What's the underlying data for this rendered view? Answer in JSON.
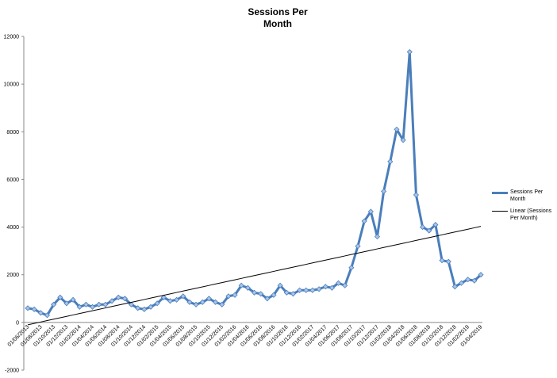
{
  "chart_data": {
    "type": "line",
    "title": "Sessions Per Month",
    "categories": [
      "01/06/2013",
      null,
      "01/08/2013",
      null,
      "01/10/2013",
      null,
      "01/12/2013",
      null,
      "01/02/2014",
      null,
      "01/04/2014",
      null,
      "01/06/2014",
      null,
      "01/08/2014",
      null,
      "01/10/2014",
      null,
      "01/12/2014",
      null,
      "01/02/2015",
      null,
      "01/04/2015",
      null,
      "01/06/2015",
      null,
      "01/08/2015",
      null,
      "01/10/2015",
      null,
      "01/12/2015",
      null,
      "01/02/2016",
      null,
      "01/04/2016",
      null,
      "01/06/2016",
      null,
      "01/08/2016",
      null,
      "01/10/2016",
      null,
      "01/12/2016",
      null,
      "01/02/2017",
      null,
      "01/04/2017",
      null,
      "01/06/2017",
      null,
      "01/08/2017",
      null,
      "01/10/2017",
      null,
      "01/12/2017",
      null,
      "01/02/2018",
      null,
      "01/04/2018",
      null,
      "01/06/2018",
      null,
      "01/08/2018",
      null,
      "01/10/2018",
      null,
      "01/12/2018",
      null,
      "01/02/2019",
      null,
      "01/04/2019"
    ],
    "series": [
      {
        "name": "Sessions Per Month",
        "color": "#4a7ebb",
        "markers": true,
        "values": [
          600,
          550,
          400,
          300,
          750,
          1050,
          800,
          950,
          650,
          750,
          650,
          750,
          750,
          900,
          1050,
          1000,
          750,
          600,
          550,
          650,
          800,
          1050,
          900,
          950,
          1100,
          850,
          750,
          850,
          1000,
          850,
          750,
          1100,
          1150,
          1550,
          1450,
          1250,
          1200,
          1000,
          1150,
          1550,
          1250,
          1200,
          1350,
          1350,
          1350,
          1400,
          1500,
          1450,
          1650,
          1550,
          2300,
          3200,
          4250,
          4650,
          3600,
          5500,
          6750,
          8100,
          7650,
          11350,
          5350,
          4000,
          3850,
          4100,
          2600,
          2550,
          1500,
          1650,
          1800,
          1750,
          2000
        ]
      },
      {
        "name": "Linear (Sessions Per Month)",
        "color": "#000000",
        "markers": false,
        "values": [
          -100,
          -41,
          18,
          77,
          136,
          195,
          254,
          313,
          372,
          431,
          490,
          549,
          608,
          667,
          726,
          785,
          844,
          903,
          962,
          1021,
          1080,
          1139,
          1198,
          1257,
          1316,
          1375,
          1434,
          1493,
          1552,
          1611,
          1670,
          1729,
          1788,
          1847,
          1906,
          1965,
          2024,
          2083,
          2142,
          2201,
          2260,
          2319,
          2378,
          2437,
          2496,
          2555,
          2614,
          2673,
          2732,
          2791,
          2850,
          2909,
          2968,
          3027,
          3086,
          3145,
          3204,
          3263,
          3322,
          3381,
          3440,
          3499,
          3558,
          3617,
          3676,
          3735,
          3794,
          3853,
          3912,
          3971,
          4030
        ]
      }
    ],
    "ylim": [
      -2000,
      12000
    ],
    "yticks": [
      -2000,
      0,
      2000,
      4000,
      6000,
      8000,
      10000,
      12000
    ],
    "grid": false
  }
}
